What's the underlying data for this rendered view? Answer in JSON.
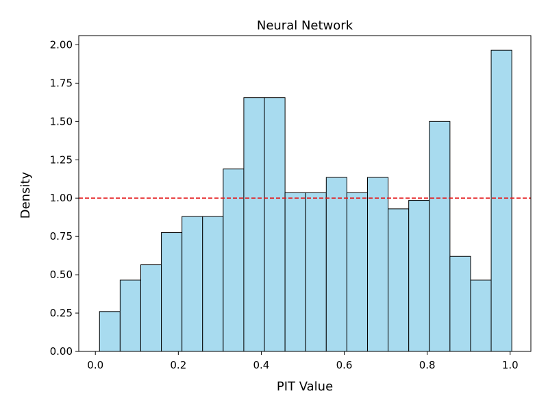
{
  "chart_data": {
    "type": "bar",
    "title": "Neural Network",
    "xlabel": "PIT Value",
    "ylabel": "Density",
    "xlim": [
      -0.04,
      1.05
    ],
    "ylim": [
      0,
      2.06
    ],
    "bin_edges": [
      0.01,
      0.0597,
      0.1094,
      0.1591,
      0.2088,
      0.2585,
      0.3082,
      0.3579,
      0.4076,
      0.4573,
      0.507,
      0.5567,
      0.6064,
      0.6561,
      0.7058,
      0.7555,
      0.8052,
      0.8549,
      0.9046,
      0.9543,
      1.004
    ],
    "values": [
      0.26,
      0.465,
      0.565,
      0.775,
      0.88,
      0.88,
      1.19,
      1.655,
      1.655,
      1.035,
      1.035,
      1.135,
      1.035,
      1.135,
      0.93,
      0.985,
      1.5,
      0.62,
      0.465,
      1.965
    ],
    "reference_line": {
      "y": 1.0,
      "color": "#e41a1c",
      "style": "dashed"
    },
    "bar_color": "#a8dbef",
    "edge_color": "#000000",
    "x_ticks": [
      {
        "value": 0.0,
        "label": "0.0"
      },
      {
        "value": 0.2,
        "label": "0.2"
      },
      {
        "value": 0.4,
        "label": "0.4"
      },
      {
        "value": 0.6,
        "label": "0.6"
      },
      {
        "value": 0.8,
        "label": "0.8"
      },
      {
        "value": 1.0,
        "label": "1.0"
      }
    ],
    "y_ticks": [
      {
        "value": 0.0,
        "label": "0.00"
      },
      {
        "value": 0.25,
        "label": "0.25"
      },
      {
        "value": 0.5,
        "label": "0.50"
      },
      {
        "value": 0.75,
        "label": "0.75"
      },
      {
        "value": 1.0,
        "label": "1.00"
      },
      {
        "value": 1.25,
        "label": "1.25"
      },
      {
        "value": 1.5,
        "label": "1.50"
      },
      {
        "value": 1.75,
        "label": "1.75"
      },
      {
        "value": 2.0,
        "label": "2.00"
      }
    ],
    "grid": false,
    "legend": "none"
  }
}
